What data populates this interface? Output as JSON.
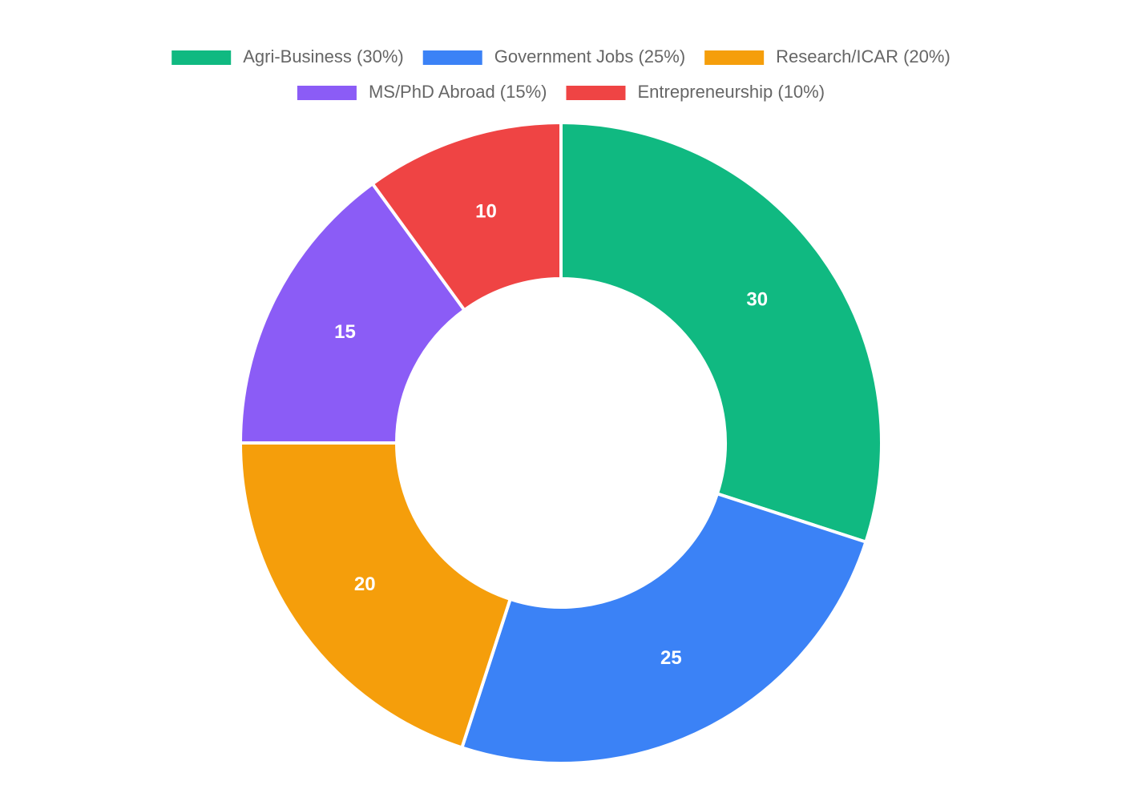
{
  "chart_data": {
    "type": "doughnut",
    "categories": [
      "Agri-Business (30%)",
      "Government Jobs (25%)",
      "Research/ICAR (20%)",
      "MS/PhD Abroad (15%)",
      "Entrepreneurship (10%)"
    ],
    "values": [
      30,
      25,
      20,
      15,
      10
    ],
    "colors": [
      "#10b981",
      "#3b82f6",
      "#f59e0b",
      "#8b5cf6",
      "#ef4444"
    ],
    "legend": "top"
  }
}
